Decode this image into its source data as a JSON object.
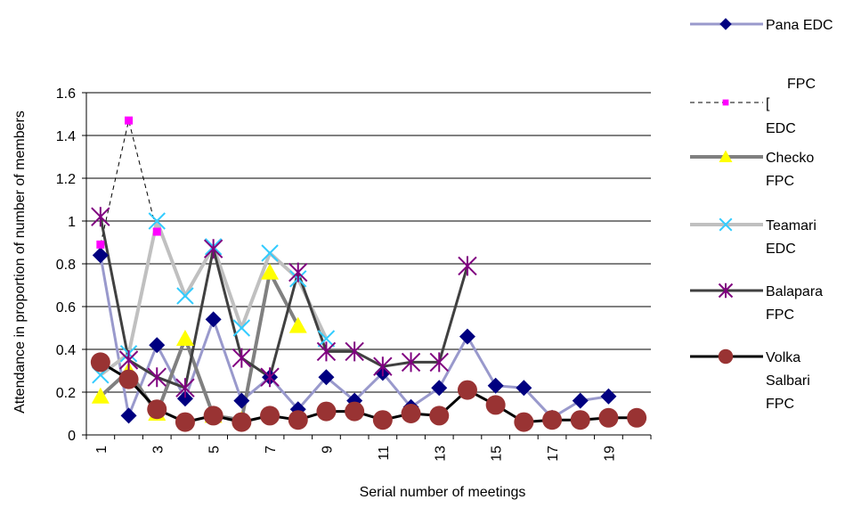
{
  "chart_data": {
    "type": "line",
    "title": "",
    "xlabel": "Serial number of  meetings",
    "ylabel": "Attendance in proportion of number of members",
    "ylim": [
      0,
      1.6
    ],
    "yticks": [
      "0",
      "0.2",
      "0.4",
      "0.6",
      "0.8",
      "1",
      "1.2",
      "1.4",
      "1.6"
    ],
    "x": [
      1,
      2,
      3,
      4,
      5,
      6,
      7,
      8,
      9,
      10,
      11,
      12,
      13,
      14,
      15,
      16,
      17,
      18,
      19,
      20
    ],
    "xtick_labels": [
      "1",
      "3",
      "5",
      "7",
      "9",
      "11",
      "13",
      "15",
      "17",
      "19"
    ],
    "grid": "horizontal",
    "legend_position": "right",
    "series": [
      {
        "name": "Pana EDC",
        "legend_lines": [
          "Pana EDC"
        ],
        "color": "#9999CC",
        "marker": "diamond",
        "marker_color": "#000080",
        "line_style": "solid",
        "values": [
          0.84,
          0.09,
          0.42,
          0.17,
          0.54,
          0.16,
          0.27,
          0.12,
          0.27,
          0.16,
          0.29,
          0.13,
          0.22,
          0.46,
          0.23,
          0.22,
          0.08,
          0.16,
          0.18,
          null
        ]
      },
      {
        "name": "FPC EDC",
        "legend_lines": [
          "FPC",
          "EDC"
        ],
        "legend_fragment": "[",
        "color": "#000000",
        "marker": "square",
        "marker_color": "#FF00FF",
        "line_style": "dashed",
        "values": [
          0.89,
          1.47,
          0.95,
          null,
          null,
          null,
          null,
          null,
          null,
          null,
          null,
          null,
          null,
          null,
          null,
          null,
          null,
          null,
          null,
          null
        ]
      },
      {
        "name": "Checko FPC",
        "legend_lines": [
          "Checko",
          "FPC"
        ],
        "color": "#808080",
        "marker": "triangle",
        "marker_color": "#FFFF00",
        "line_style": "solid",
        "values": [
          0.18,
          0.3,
          0.1,
          0.45,
          0.09,
          0.07,
          0.76,
          0.51,
          null,
          null,
          null,
          null,
          null,
          null,
          null,
          null,
          null,
          null,
          null,
          null
        ]
      },
      {
        "name": "Teamari EDC",
        "legend_lines": [
          "Teamari",
          "EDC"
        ],
        "color": "#C0C0C0",
        "marker": "x",
        "marker_color": "#33CCFF",
        "line_style": "solid",
        "values": [
          0.28,
          0.38,
          1.0,
          0.65,
          0.88,
          0.5,
          0.85,
          0.73,
          0.45,
          null,
          null,
          null,
          null,
          null,
          null,
          null,
          null,
          null,
          null,
          null
        ]
      },
      {
        "name": "Balapara FPC",
        "legend_lines": [
          "Balapara",
          "FPC"
        ],
        "color": "#404040",
        "marker": "star",
        "marker_color": "#800080",
        "line_style": "solid",
        "values": [
          1.02,
          0.35,
          0.27,
          0.22,
          0.87,
          0.36,
          0.27,
          0.76,
          0.39,
          0.39,
          0.32,
          0.34,
          0.34,
          0.79,
          null,
          null,
          null,
          null,
          null,
          null
        ]
      },
      {
        "name": "Volka Salbari FPC",
        "legend_lines": [
          "Volka",
          "Salbari",
          "FPC"
        ],
        "color": "#000000",
        "marker": "circle",
        "marker_color": "#993333",
        "line_style": "solid",
        "values": [
          0.34,
          0.26,
          0.12,
          0.06,
          0.09,
          0.06,
          0.09,
          0.07,
          0.11,
          0.11,
          0.07,
          0.1,
          0.09,
          0.21,
          0.14,
          0.06,
          0.07,
          0.07,
          0.08,
          0.08
        ]
      }
    ]
  }
}
